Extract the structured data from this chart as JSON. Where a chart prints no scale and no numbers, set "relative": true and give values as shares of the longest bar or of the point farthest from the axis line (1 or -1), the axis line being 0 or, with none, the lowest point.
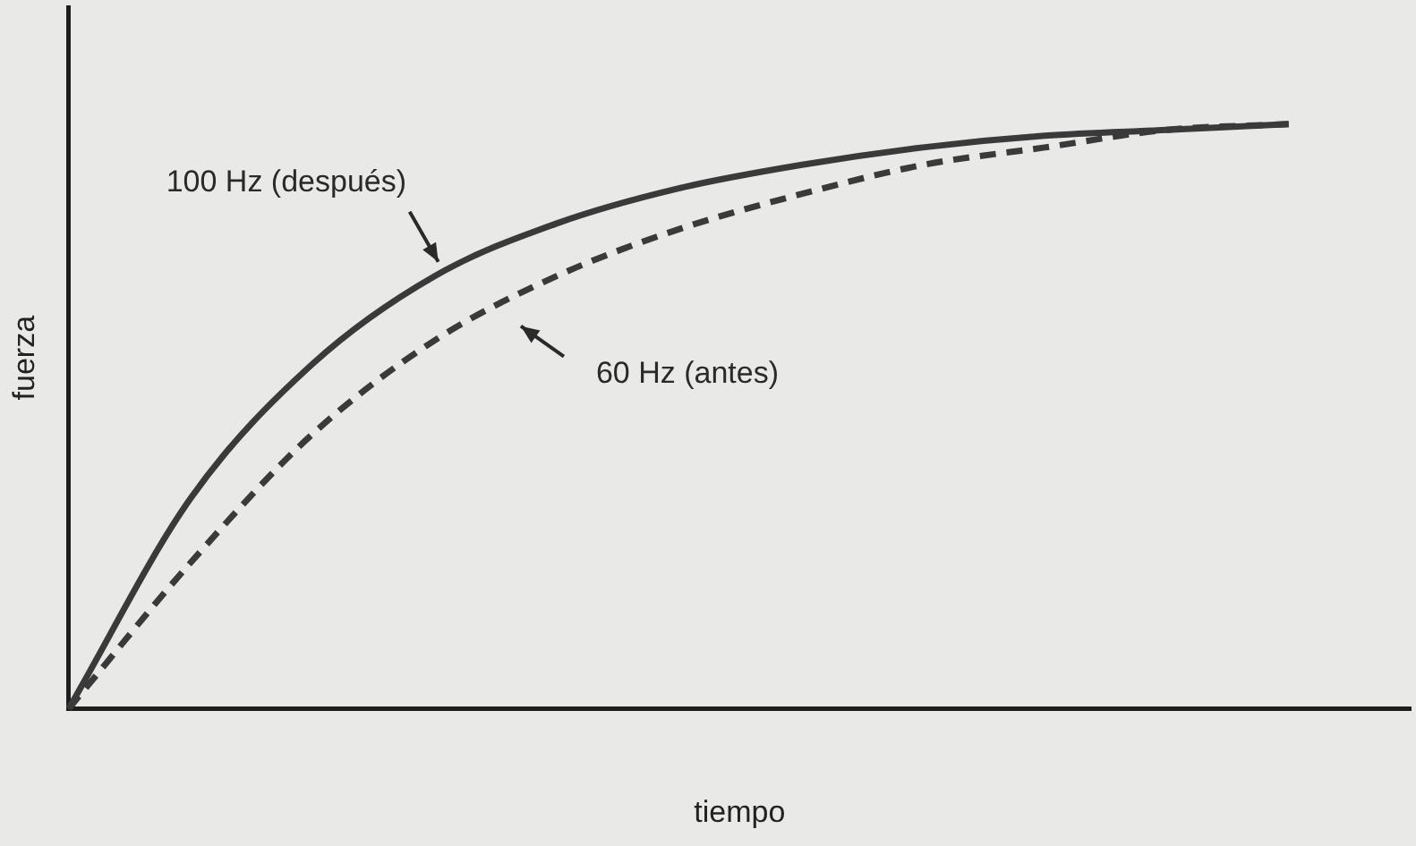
{
  "chart_data": {
    "type": "line",
    "relative": true,
    "xlabel": "tiempo",
    "ylabel": "fuerza",
    "categories": [
      null,
      null,
      null,
      null,
      null,
      null,
      null,
      null,
      null,
      null,
      null,
      null
    ],
    "series": [
      {
        "name": "100 Hz (después)",
        "color": "#3a3a3a",
        "line_style": "solid",
        "values": [
          0,
          0.36,
          0.59,
          0.74,
          0.83,
          0.89,
          0.93,
          0.96,
          0.98,
          0.99,
          1,
          null
        ]
      },
      {
        "name": "60 Hz (antes)",
        "color": "#3a3a3a",
        "line_style": "dashed",
        "values": [
          0,
          0.25,
          0.47,
          0.63,
          0.74,
          0.82,
          0.88,
          0.93,
          0.96,
          0.99,
          1,
          null
        ]
      }
    ],
    "grid": false,
    "legend": false,
    "marker": "none"
  }
}
